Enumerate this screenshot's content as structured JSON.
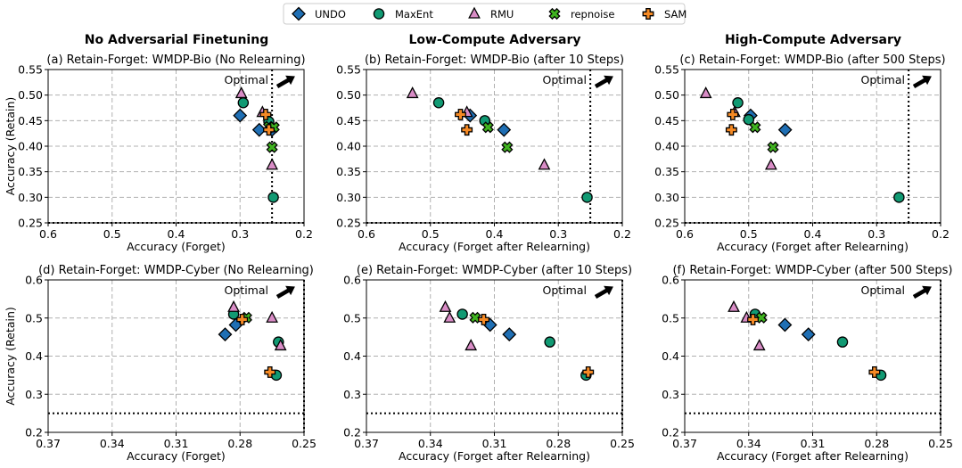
{
  "colors": {
    "UNDO": "#1f6fb4",
    "MaxEnt": "#119a73",
    "RMU": "#d98cc6",
    "repnoise": "#3fb31f",
    "SAM": "#f58a25"
  },
  "legend": {
    "items": [
      {
        "method": "UNDO",
        "marker": "diamond"
      },
      {
        "method": "MaxEnt",
        "marker": "circle"
      },
      {
        "method": "RMU",
        "marker": "triangle"
      },
      {
        "method": "repnoise",
        "marker": "x"
      },
      {
        "method": "SAM",
        "marker": "plus"
      }
    ]
  },
  "column_titles": [
    "No Adversarial Finetuning",
    "Low-Compute Adversary",
    "High-Compute Adversary"
  ],
  "optimal_label": "Optimal",
  "chart_data": [
    {
      "type": "scatter",
      "title": "(a) Retain-Forget: WMDP-Bio (No Relearning)",
      "xlabel": "Accuracy (Forget)",
      "ylabel": "Accuracy (Retain)",
      "xlim": [
        0.6,
        0.2
      ],
      "ylim": [
        0.25,
        0.55
      ],
      "xticks": [
        0.6,
        0.5,
        0.4,
        0.3,
        0.2
      ],
      "xtick_labels": [
        "0.6",
        "0.5",
        "0.4",
        "0.3",
        "0.2"
      ],
      "yticks": [
        0.25,
        0.3,
        0.35,
        0.4,
        0.45,
        0.5,
        0.55
      ],
      "ytick_labels": [
        "0.25",
        "0.30",
        "0.35",
        "0.40",
        "0.45",
        "0.50",
        "0.55"
      ],
      "vline": 0.25,
      "hline": 0.25,
      "series": [
        {
          "name": "UNDO",
          "points": [
            [
              0.3,
              0.46
            ],
            [
              0.27,
              0.432
            ],
            [
              0.25,
              0.432
            ]
          ]
        },
        {
          "name": "MaxEnt",
          "points": [
            [
              0.295,
              0.485
            ],
            [
              0.255,
              0.448
            ],
            [
              0.248,
              0.3
            ]
          ]
        },
        {
          "name": "RMU",
          "points": [
            [
              0.298,
              0.503
            ],
            [
              0.265,
              0.466
            ],
            [
              0.25,
              0.363
            ]
          ]
        },
        {
          "name": "repnoise",
          "points": [
            [
              0.255,
              0.438
            ],
            [
              0.25,
              0.398
            ],
            [
              0.247,
              0.437
            ]
          ]
        },
        {
          "name": "SAM",
          "points": [
            [
              0.26,
              0.462
            ],
            [
              0.255,
              0.432
            ]
          ]
        }
      ]
    },
    {
      "type": "scatter",
      "title": "(b) Retain-Forget: WMDP-Bio (after 10 Steps)",
      "xlabel": "Accuracy (Forget after Relearning)",
      "ylabel": "",
      "xlim": [
        0.6,
        0.2
      ],
      "ylim": [
        0.25,
        0.55
      ],
      "xticks": [
        0.6,
        0.5,
        0.4,
        0.3,
        0.2
      ],
      "xtick_labels": [
        "0.6",
        "0.5",
        "0.4",
        "0.3",
        "0.2"
      ],
      "yticks": [
        0.25,
        0.3,
        0.35,
        0.4,
        0.45,
        0.5,
        0.55
      ],
      "ytick_labels": [
        "0.25",
        "0.30",
        "0.35",
        "0.40",
        "0.45",
        "0.50",
        "0.55"
      ],
      "vline": 0.25,
      "hline": 0.25,
      "series": [
        {
          "name": "UNDO",
          "points": [
            [
              0.438,
              0.46
            ],
            [
              0.385,
              0.432
            ]
          ]
        },
        {
          "name": "MaxEnt",
          "points": [
            [
              0.487,
              0.485
            ],
            [
              0.415,
              0.45
            ],
            [
              0.255,
              0.3
            ]
          ]
        },
        {
          "name": "RMU",
          "points": [
            [
              0.528,
              0.503
            ],
            [
              0.443,
              0.466
            ],
            [
              0.322,
              0.363
            ]
          ]
        },
        {
          "name": "repnoise",
          "points": [
            [
              0.41,
              0.437
            ],
            [
              0.38,
              0.398
            ]
          ]
        },
        {
          "name": "SAM",
          "points": [
            [
              0.453,
              0.462
            ],
            [
              0.443,
              0.432
            ]
          ]
        }
      ]
    },
    {
      "type": "scatter",
      "title": "(c) Retain-Forget: WMDP-Bio (after 500 Steps)",
      "xlabel": "Accuracy (Forget after Relearning)",
      "ylabel": "",
      "xlim": [
        0.6,
        0.2
      ],
      "ylim": [
        0.25,
        0.55
      ],
      "xticks": [
        0.6,
        0.5,
        0.4,
        0.3,
        0.2
      ],
      "xtick_labels": [
        "0.6",
        "0.5",
        "0.4",
        "0.3",
        "0.2"
      ],
      "yticks": [
        0.25,
        0.3,
        0.35,
        0.4,
        0.45,
        0.5,
        0.55
      ],
      "ytick_labels": [
        "0.25",
        "0.30",
        "0.35",
        "0.40",
        "0.45",
        "0.50",
        "0.55"
      ],
      "vline": 0.25,
      "hline": 0.25,
      "series": [
        {
          "name": "UNDO",
          "points": [
            [
              0.497,
              0.46
            ],
            [
              0.443,
              0.432
            ]
          ]
        },
        {
          "name": "MaxEnt",
          "points": [
            [
              0.517,
              0.485
            ],
            [
              0.5,
              0.452
            ],
            [
              0.265,
              0.3
            ]
          ]
        },
        {
          "name": "RMU",
          "points": [
            [
              0.567,
              0.503
            ],
            [
              0.522,
              0.466
            ],
            [
              0.465,
              0.363
            ]
          ]
        },
        {
          "name": "repnoise",
          "points": [
            [
              0.49,
              0.437
            ],
            [
              0.462,
              0.398
            ]
          ]
        },
        {
          "name": "SAM",
          "points": [
            [
              0.525,
              0.462
            ],
            [
              0.527,
              0.432
            ]
          ]
        }
      ]
    },
    {
      "type": "scatter",
      "title": "(d) Retain-Forget: WMDP-Cyber (No Relearning)",
      "xlabel": "Accuracy (Forget)",
      "ylabel": "Accuracy (Retain)",
      "xlim": [
        0.37,
        0.25
      ],
      "ylim": [
        0.2,
        0.6
      ],
      "xticks": [
        0.37,
        0.34,
        0.31,
        0.28,
        0.25
      ],
      "xtick_labels": [
        "0.37",
        "0.34",
        "0.31",
        "0.28",
        "0.25"
      ],
      "yticks": [
        0.2,
        0.3,
        0.4,
        0.5,
        0.6
      ],
      "ytick_labels": [
        "0.2",
        "0.3",
        "0.4",
        "0.5",
        "0.6"
      ],
      "vline": 0.25,
      "hline": 0.25,
      "series": [
        {
          "name": "UNDO",
          "points": [
            [
              0.287,
              0.457
            ],
            [
              0.282,
              0.482
            ]
          ]
        },
        {
          "name": "MaxEnt",
          "points": [
            [
              0.283,
              0.51
            ],
            [
              0.262,
              0.437
            ],
            [
              0.263,
              0.35
            ]
          ]
        },
        {
          "name": "RMU",
          "points": [
            [
              0.283,
              0.528
            ],
            [
              0.265,
              0.5
            ],
            [
              0.261,
              0.427
            ]
          ]
        },
        {
          "name": "repnoise",
          "points": [
            [
              0.277,
              0.501
            ]
          ]
        },
        {
          "name": "SAM",
          "points": [
            [
              0.279,
              0.496
            ],
            [
              0.266,
              0.358
            ]
          ]
        }
      ]
    },
    {
      "type": "scatter",
      "title": "(e) Retain-Forget: WMDP-Cyber (after 10 Steps)",
      "xlabel": "Accuracy (Forget after Relearning)",
      "ylabel": "",
      "xlim": [
        0.37,
        0.25
      ],
      "ylim": [
        0.2,
        0.6
      ],
      "xticks": [
        0.37,
        0.34,
        0.31,
        0.28,
        0.25
      ],
      "xtick_labels": [
        "0.37",
        "0.34",
        "0.31",
        "0.28",
        "0.25"
      ],
      "yticks": [
        0.2,
        0.3,
        0.4,
        0.5,
        0.6
      ],
      "ytick_labels": [
        "0.2",
        "0.3",
        "0.4",
        "0.5",
        "0.6"
      ],
      "vline": 0.25,
      "hline": 0.25,
      "series": [
        {
          "name": "UNDO",
          "points": [
            [
              0.312,
              0.482
            ],
            [
              0.303,
              0.457
            ]
          ]
        },
        {
          "name": "MaxEnt",
          "points": [
            [
              0.325,
              0.51
            ],
            [
              0.284,
              0.437
            ],
            [
              0.267,
              0.35
            ]
          ]
        },
        {
          "name": "RMU",
          "points": [
            [
              0.333,
              0.528
            ],
            [
              0.331,
              0.5
            ],
            [
              0.321,
              0.427
            ]
          ]
        },
        {
          "name": "repnoise",
          "points": [
            [
              0.319,
              0.501
            ]
          ]
        },
        {
          "name": "SAM",
          "points": [
            [
              0.315,
              0.496
            ],
            [
              0.266,
              0.358
            ]
          ]
        }
      ]
    },
    {
      "type": "scatter",
      "title": "(f) Retain-Forget: WMDP-Cyber (after 500 Steps)",
      "xlabel": "Accuracy (Forget after Relearning)",
      "ylabel": "",
      "xlim": [
        0.37,
        0.25
      ],
      "ylim": [
        0.2,
        0.6
      ],
      "xticks": [
        0.37,
        0.34,
        0.31,
        0.28,
        0.25
      ],
      "xtick_labels": [
        "0.37",
        "0.34",
        "0.31",
        "0.28",
        "0.25"
      ],
      "yticks": [
        0.2,
        0.3,
        0.4,
        0.5,
        0.6
      ],
      "ytick_labels": [
        "0.2",
        "0.3",
        "0.4",
        "0.5",
        "0.6"
      ],
      "vline": 0.25,
      "hline": 0.25,
      "series": [
        {
          "name": "UNDO",
          "points": [
            [
              0.323,
              0.482
            ],
            [
              0.312,
              0.457
            ]
          ]
        },
        {
          "name": "MaxEnt",
          "points": [
            [
              0.337,
              0.51
            ],
            [
              0.296,
              0.437
            ],
            [
              0.278,
              0.35
            ]
          ]
        },
        {
          "name": "RMU",
          "points": [
            [
              0.347,
              0.528
            ],
            [
              0.341,
              0.5
            ],
            [
              0.335,
              0.427
            ]
          ]
        },
        {
          "name": "repnoise",
          "points": [
            [
              0.334,
              0.501
            ]
          ]
        },
        {
          "name": "SAM",
          "points": [
            [
              0.338,
              0.496
            ],
            [
              0.281,
              0.358
            ]
          ]
        }
      ]
    }
  ]
}
